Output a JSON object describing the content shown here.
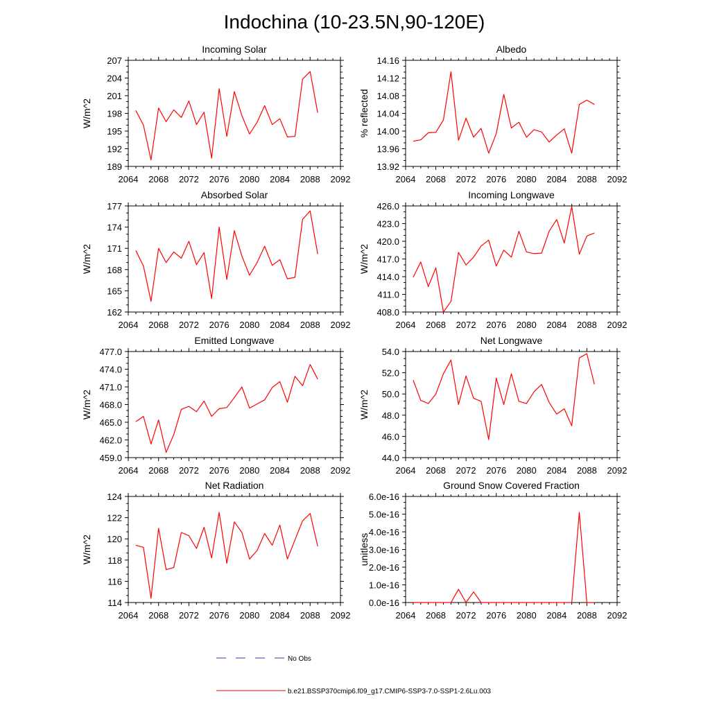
{
  "figure": {
    "title": "Indochina (10-23.5N,90-120E)",
    "legend": [
      {
        "label": "No Obs",
        "color": "#3333aa",
        "style": "dashed"
      },
      {
        "label": "b.e21.BSSP370cmip6.f09_g17.CMIP6-SSP3-7.0-SSP1-2.6Lu.003",
        "color": "#ff0000",
        "style": "solid"
      }
    ]
  },
  "chart_data": [
    {
      "type": "line",
      "title": "Incoming Solar",
      "ylabel": "W/m^2",
      "xlim": [
        2064,
        2092
      ],
      "ylim": [
        189,
        207
      ],
      "xticks": [
        "2064",
        "2068",
        "2072",
        "2076",
        "2080",
        "2084",
        "2088",
        "2092"
      ],
      "yticks": [
        "189",
        "192",
        "195",
        "198",
        "201",
        "204",
        "207"
      ],
      "series": [
        {
          "color": "#ff0000",
          "x": [
            2065,
            2066,
            2067,
            2068,
            2069,
            2070,
            2071,
            2072,
            2073,
            2074,
            2075,
            2076,
            2077,
            2078,
            2079,
            2080,
            2081,
            2082,
            2083,
            2084,
            2085,
            2086,
            2087,
            2088,
            2089
          ],
          "values": [
            198.5,
            196.0,
            190.1,
            198.9,
            196.6,
            198.6,
            197.3,
            200.1,
            196.1,
            198.2,
            190.4,
            202.2,
            194.1,
            201.7,
            197.6,
            194.5,
            196.5,
            199.3,
            196.1,
            197.1,
            194.0,
            194.1,
            203.8,
            205.1,
            198.1
          ]
        }
      ]
    },
    {
      "type": "line",
      "title": "Albedo",
      "ylabel": "% reflected",
      "xlim": [
        2064,
        2092
      ],
      "ylim": [
        13.92,
        14.16
      ],
      "xticks": [
        "2064",
        "2068",
        "2072",
        "2076",
        "2080",
        "2084",
        "2088",
        "2092"
      ],
      "yticks": [
        "13.92",
        "13.96",
        "14.00",
        "14.04",
        "14.08",
        "14.12",
        "14.16"
      ],
      "series": [
        {
          "color": "#ff0000",
          "x": [
            2065,
            2066,
            2067,
            2068,
            2069,
            2070,
            2071,
            2072,
            2073,
            2074,
            2075,
            2076,
            2077,
            2078,
            2079,
            2080,
            2081,
            2082,
            2083,
            2084,
            2085,
            2086,
            2087,
            2088,
            2089
          ],
          "values": [
            13.977,
            13.98,
            13.996,
            13.997,
            14.025,
            14.134,
            13.979,
            14.029,
            13.986,
            14.006,
            13.95,
            13.994,
            14.083,
            14.007,
            14.02,
            13.986,
            14.003,
            13.998,
            13.975,
            13.991,
            14.005,
            13.95,
            14.06,
            14.07,
            14.06
          ]
        }
      ]
    },
    {
      "type": "line",
      "title": "Absorbed Solar",
      "ylabel": "W/m^2",
      "xlim": [
        2064,
        2092
      ],
      "ylim": [
        162,
        177
      ],
      "xticks": [
        "2064",
        "2068",
        "2072",
        "2076",
        "2080",
        "2084",
        "2088",
        "2092"
      ],
      "yticks": [
        "162",
        "165",
        "168",
        "171",
        "174",
        "177"
      ],
      "series": [
        {
          "color": "#ff0000",
          "x": [
            2065,
            2066,
            2067,
            2068,
            2069,
            2070,
            2071,
            2072,
            2073,
            2074,
            2075,
            2076,
            2077,
            2078,
            2079,
            2080,
            2081,
            2082,
            2083,
            2084,
            2085,
            2086,
            2087,
            2088,
            2089
          ],
          "values": [
            170.7,
            168.5,
            163.5,
            171.0,
            169.0,
            170.5,
            169.6,
            172.0,
            168.7,
            170.4,
            163.9,
            174.0,
            166.6,
            173.5,
            169.9,
            167.2,
            169.0,
            171.3,
            168.6,
            169.4,
            166.7,
            166.9,
            175.1,
            176.3,
            170.2
          ]
        }
      ]
    },
    {
      "type": "line",
      "title": "Incoming Longwave",
      "ylabel": "W/m^2",
      "xlim": [
        2064,
        2092
      ],
      "ylim": [
        408.0,
        426.0
      ],
      "xticks": [
        "2064",
        "2068",
        "2072",
        "2076",
        "2080",
        "2084",
        "2088",
        "2092"
      ],
      "yticks": [
        "408.0",
        "411.0",
        "414.0",
        "417.0",
        "420.0",
        "423.0",
        "426.0"
      ],
      "series": [
        {
          "color": "#ff0000",
          "x": [
            2065,
            2066,
            2067,
            2068,
            2069,
            2070,
            2071,
            2072,
            2073,
            2074,
            2075,
            2076,
            2077,
            2078,
            2079,
            2080,
            2081,
            2082,
            2083,
            2084,
            2085,
            2086,
            2087,
            2088,
            2089
          ],
          "values": [
            413.9,
            416.5,
            412.3,
            415.5,
            408.0,
            409.8,
            418.1,
            416.0,
            417.3,
            419.2,
            420.2,
            415.8,
            418.5,
            417.3,
            421.7,
            418.2,
            417.9,
            418.0,
            421.7,
            423.7,
            419.7,
            425.9,
            417.8,
            420.9,
            421.4
          ]
        }
      ]
    },
    {
      "type": "line",
      "title": "Emitted Longwave",
      "ylabel": "W/m^2",
      "xlim": [
        2064,
        2092
      ],
      "ylim": [
        459.0,
        477.0
      ],
      "xticks": [
        "2064",
        "2068",
        "2072",
        "2076",
        "2080",
        "2084",
        "2088",
        "2092"
      ],
      "yticks": [
        "459.0",
        "462.0",
        "465.0",
        "468.0",
        "471.0",
        "474.0",
        "477.0"
      ],
      "series": [
        {
          "color": "#ff0000",
          "x": [
            2065,
            2066,
            2067,
            2068,
            2069,
            2070,
            2071,
            2072,
            2073,
            2074,
            2075,
            2076,
            2077,
            2078,
            2079,
            2080,
            2081,
            2082,
            2083,
            2084,
            2085,
            2086,
            2087,
            2088,
            2089
          ],
          "values": [
            465.1,
            466.0,
            461.3,
            465.4,
            459.9,
            462.9,
            467.2,
            467.7,
            466.8,
            468.6,
            466.0,
            467.3,
            467.5,
            469.2,
            471.0,
            467.4,
            468.1,
            468.8,
            470.9,
            471.9,
            468.4,
            472.8,
            471.2,
            474.8,
            472.3
          ]
        }
      ]
    },
    {
      "type": "line",
      "title": "Net Longwave",
      "ylabel": "W/m^2",
      "xlim": [
        2064,
        2092
      ],
      "ylim": [
        44.0,
        54.0
      ],
      "xticks": [
        "2064",
        "2068",
        "2072",
        "2076",
        "2080",
        "2084",
        "2088",
        "2092"
      ],
      "yticks": [
        "44.0",
        "46.0",
        "48.0",
        "50.0",
        "52.0",
        "54.0"
      ],
      "series": [
        {
          "color": "#ff0000",
          "x": [
            2065,
            2066,
            2067,
            2068,
            2069,
            2070,
            2071,
            2072,
            2073,
            2074,
            2075,
            2076,
            2077,
            2078,
            2079,
            2080,
            2081,
            2082,
            2083,
            2084,
            2085,
            2086,
            2087,
            2088,
            2089
          ],
          "values": [
            51.3,
            49.4,
            49.1,
            50.0,
            51.9,
            53.2,
            49.0,
            51.7,
            49.6,
            49.3,
            45.7,
            51.5,
            49.0,
            51.9,
            49.3,
            49.1,
            50.2,
            50.9,
            49.2,
            48.1,
            48.6,
            47.0,
            53.4,
            53.8,
            50.9
          ]
        }
      ]
    },
    {
      "type": "line",
      "title": "Net Radiation",
      "ylabel": "W/m^2",
      "xlim": [
        2064,
        2092
      ],
      "ylim": [
        114,
        124
      ],
      "xticks": [
        "2064",
        "2068",
        "2072",
        "2076",
        "2080",
        "2084",
        "2088",
        "2092"
      ],
      "yticks": [
        "114",
        "116",
        "118",
        "120",
        "122",
        "124"
      ],
      "series": [
        {
          "color": "#ff0000",
          "x": [
            2065,
            2066,
            2067,
            2068,
            2069,
            2070,
            2071,
            2072,
            2073,
            2074,
            2075,
            2076,
            2077,
            2078,
            2079,
            2080,
            2081,
            2082,
            2083,
            2084,
            2085,
            2086,
            2087,
            2088,
            2089
          ],
          "values": [
            119.4,
            119.2,
            114.4,
            121.0,
            117.1,
            117.3,
            120.6,
            120.3,
            119.1,
            121.1,
            118.2,
            122.5,
            117.7,
            121.6,
            120.6,
            118.1,
            118.9,
            120.5,
            119.4,
            121.3,
            118.1,
            119.9,
            121.7,
            122.4,
            119.3
          ]
        }
      ]
    },
    {
      "type": "line",
      "title": "Ground Snow Covered Fraction",
      "ylabel": "unitless",
      "xlim": [
        2064,
        2092
      ],
      "ylim": [
        0,
        6e-16
      ],
      "xticks": [
        "2064",
        "2068",
        "2072",
        "2076",
        "2080",
        "2084",
        "2088",
        "2092"
      ],
      "yticks": [
        "0.0e-16",
        "1.0e-16",
        "2.0e-16",
        "3.0e-16",
        "4.0e-16",
        "5.0e-16",
        "6.0e-16"
      ],
      "series": [
        {
          "color": "#ff0000",
          "x": [
            2065,
            2066,
            2067,
            2068,
            2069,
            2070,
            2071,
            2072,
            2073,
            2074,
            2075,
            2076,
            2077,
            2078,
            2079,
            2080,
            2081,
            2082,
            2083,
            2084,
            2085,
            2086,
            2087,
            2088,
            2089
          ],
          "values": [
            0,
            0,
            0,
            0,
            0,
            0,
            7.5e-17,
            0,
            6e-17,
            0,
            0,
            0,
            0,
            0,
            0,
            0,
            0,
            0,
            0,
            0,
            0,
            0,
            5.1e-16,
            0,
            0
          ]
        }
      ]
    }
  ]
}
